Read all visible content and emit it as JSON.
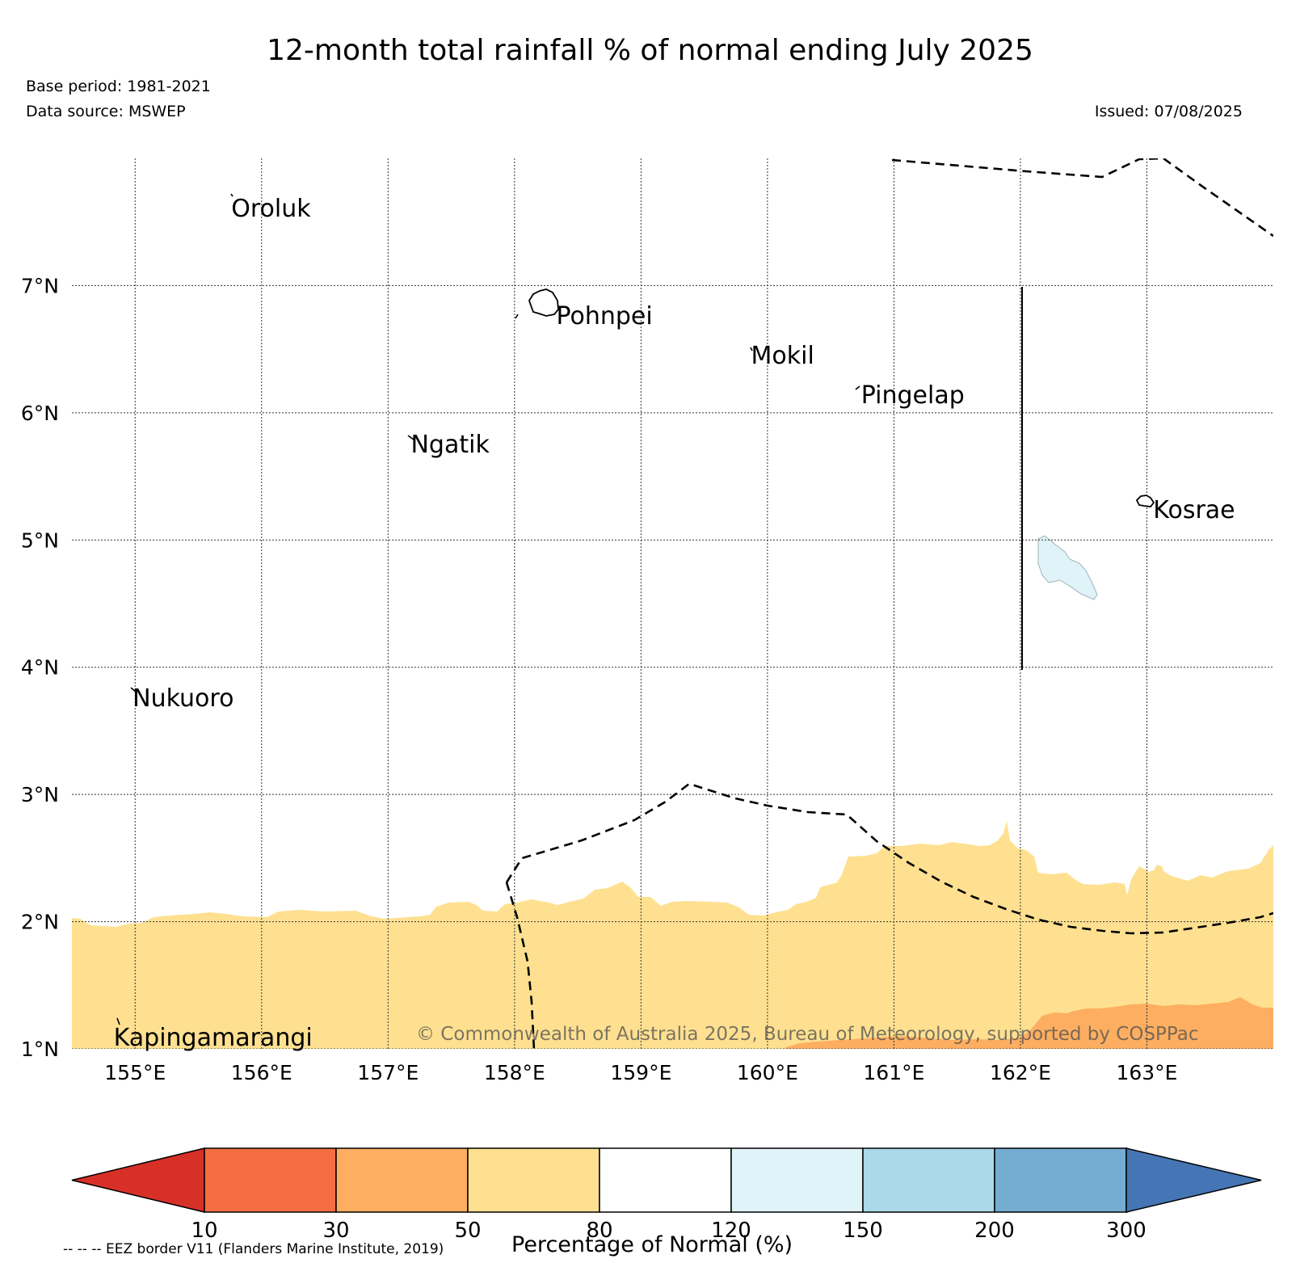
{
  "title": "12-month total rainfall % of normal ending July 2025",
  "base_period": "Base period: 1981-2021",
  "data_source": "Data source: MSWEP",
  "issued": "Issued: 07/08/2025",
  "copyright": "© Commonwealth of Australia 2025, Bureau of Meteorology, supported by COSPPac",
  "eez_note": "-- -- -- EEZ border V11 (Flanders Marine Institute, 2019)",
  "map": {
    "lon_range": [
      154.5,
      164.0
    ],
    "lat_range": [
      1.0,
      8.0
    ],
    "lon_ticks": [
      {
        "value": 155,
        "label": "155°E"
      },
      {
        "value": 156,
        "label": "156°E"
      },
      {
        "value": 157,
        "label": "157°E"
      },
      {
        "value": 158,
        "label": "158°E"
      },
      {
        "value": 159,
        "label": "159°E"
      },
      {
        "value": 160,
        "label": "160°E"
      },
      {
        "value": 161,
        "label": "161°E"
      },
      {
        "value": 162,
        "label": "162°E"
      },
      {
        "value": 163,
        "label": "163°E"
      }
    ],
    "lat_ticks": [
      {
        "value": 1,
        "label": "1°N"
      },
      {
        "value": 2,
        "label": "2°N"
      },
      {
        "value": 3,
        "label": "3°N"
      },
      {
        "value": 4,
        "label": "4°N"
      },
      {
        "value": 5,
        "label": "5°N"
      },
      {
        "value": 6,
        "label": "6°N"
      },
      {
        "value": 7,
        "label": "7°N"
      }
    ],
    "places": [
      {
        "name": "Oroluk",
        "lon": 155.76,
        "lat": 7.59
      },
      {
        "name": "Pohnpei",
        "lon": 158.33,
        "lat": 6.74
      },
      {
        "name": "Mokil",
        "lon": 159.87,
        "lat": 6.43
      },
      {
        "name": "Pingelap",
        "lon": 160.74,
        "lat": 6.12
      },
      {
        "name": "Ngatik",
        "lon": 157.18,
        "lat": 5.73
      },
      {
        "name": "Kosrae",
        "lon": 163.05,
        "lat": 5.22
      },
      {
        "name": "Nukuoro",
        "lon": 154.98,
        "lat": 3.74
      },
      {
        "name": "Kapingamarangi",
        "lon": 154.83,
        "lat": 1.07
      }
    ],
    "colors": {
      "band_50_80": "#fee090",
      "band_30_50": "#fdae61",
      "band_120_150": "#e0f3f8"
    }
  },
  "colorbar": {
    "title": "Percentage of Normal (%)",
    "ticks": [
      "10",
      "30",
      "50",
      "80",
      "120",
      "150",
      "200",
      "300"
    ],
    "colors": [
      "#d73027",
      "#f46d43",
      "#fdae61",
      "#fee090",
      "#ffffff",
      "#e0f3f8",
      "#abd9e9",
      "#74add1",
      "#4575b4"
    ]
  }
}
